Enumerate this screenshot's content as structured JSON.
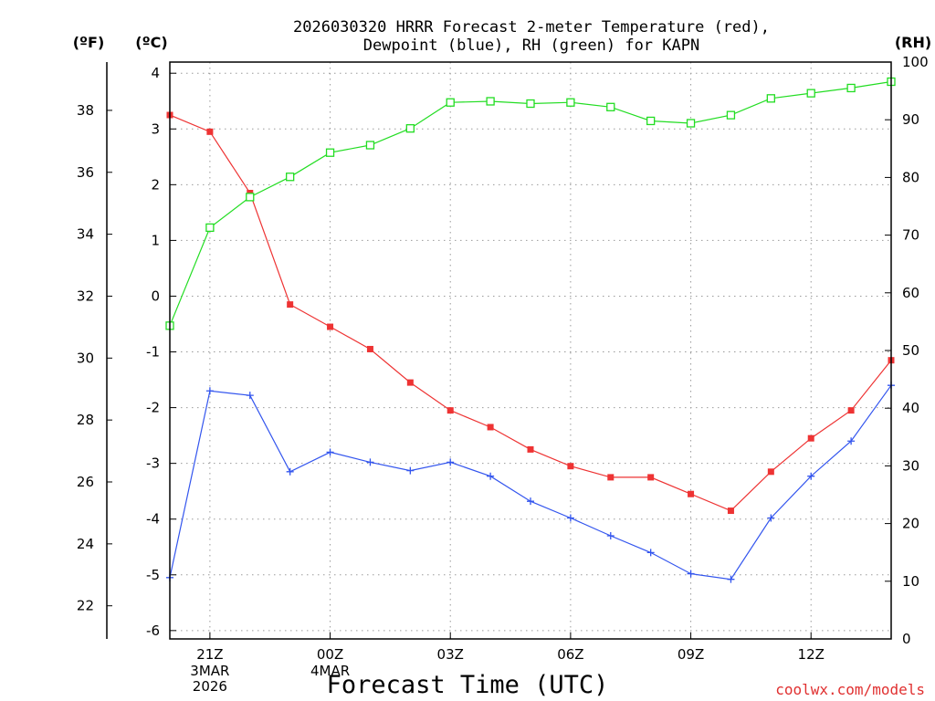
{
  "chart_data": {
    "type": "line",
    "title_lines": [
      "2026030320 HRRR Forecast 2-meter Temperature (red),",
      "Dewpoint (blue), RH (green) for KAPN"
    ],
    "xlabel": "Forecast Time (UTC)",
    "left_outer_unit": "(ºF)",
    "left_inner_unit": "(ºC)",
    "right_unit": "(RH)",
    "credit": "coolwx.com/models",
    "credit_color": "#e03030",
    "x_range": [
      0,
      18
    ],
    "x_ticks": [
      {
        "x": 1,
        "label": "21Z",
        "sub": [
          "3MAR",
          "2026"
        ]
      },
      {
        "x": 4,
        "label": "00Z",
        "sub": [
          "4MAR"
        ]
      },
      {
        "x": 7,
        "label": "03Z",
        "sub": []
      },
      {
        "x": 10,
        "label": "06Z",
        "sub": []
      },
      {
        "x": 13,
        "label": "09Z",
        "sub": []
      },
      {
        "x": 16,
        "label": "12Z",
        "sub": []
      }
    ],
    "celsius_range": [
      -6.15,
      4.2
    ],
    "celsius_ticks": [
      -6,
      -5,
      -4,
      -3,
      -2,
      -1,
      0,
      1,
      2,
      3,
      4
    ],
    "fahrenheit_ticks": [
      22,
      24,
      26,
      28,
      30,
      32,
      34,
      36,
      38
    ],
    "rh_range": [
      0,
      100
    ],
    "rh_ticks": [
      0,
      10,
      20,
      30,
      40,
      50,
      60,
      70,
      80,
      90,
      100
    ],
    "grid": true,
    "x": [
      0,
      1,
      2,
      3,
      4,
      5,
      6,
      7,
      8,
      9,
      10,
      11,
      12,
      13,
      14,
      15,
      16,
      17,
      18
    ],
    "series": [
      {
        "name": "Temperature",
        "color": "#ee3333",
        "marker": "filled-square",
        "axis": "celsius",
        "values": [
          3.25,
          2.95,
          1.85,
          -0.15,
          -0.55,
          -0.95,
          -1.55,
          -2.05,
          -2.35,
          -2.75,
          -3.05,
          -3.25,
          -3.25,
          -3.55,
          -3.85,
          -3.15,
          -2.55,
          -2.05,
          -1.15
        ]
      },
      {
        "name": "Dewpoint",
        "color": "#3355ee",
        "marker": "plus",
        "axis": "celsius",
        "values": [
          -5.05,
          -1.7,
          -1.78,
          -3.15,
          -2.8,
          -2.98,
          -3.13,
          -2.98,
          -3.23,
          -3.68,
          -3.98,
          -4.3,
          -4.6,
          -4.98,
          -5.08,
          -3.98,
          -3.23,
          -2.6,
          -1.6
        ]
      },
      {
        "name": "RH",
        "color": "#22dd22",
        "marker": "open-square",
        "axis": "rh",
        "values": [
          54.3,
          71.3,
          76.6,
          80.1,
          84.3,
          85.6,
          88.5,
          93.0,
          93.2,
          92.8,
          93.0,
          92.2,
          89.8,
          89.4,
          90.8,
          93.7,
          94.6,
          95.5,
          96.6
        ]
      }
    ]
  }
}
